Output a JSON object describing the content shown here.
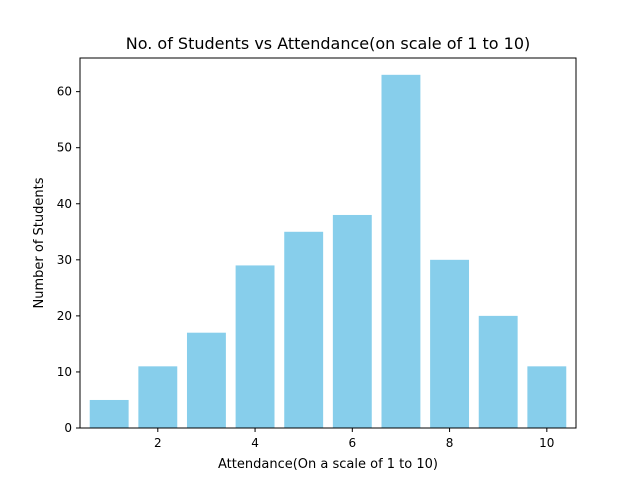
{
  "chart_data": {
    "type": "bar",
    "title": "No. of Students vs Attendance(on scale of 1 to 10)",
    "xlabel": "Attendance(On a scale of 1 to 10)",
    "ylabel": "Number of Students",
    "x": [
      1,
      2,
      3,
      4,
      5,
      6,
      7,
      8,
      9,
      10
    ],
    "values": [
      5,
      11,
      17,
      29,
      35,
      38,
      63,
      30,
      20,
      11
    ],
    "xlim": [
      0.4,
      10.6
    ],
    "ylim": [
      0,
      66
    ],
    "xticks": [
      2,
      4,
      6,
      8,
      10
    ],
    "yticks": [
      0,
      10,
      20,
      30,
      40,
      50,
      60
    ],
    "bar_width": 0.8,
    "grid": false,
    "legend": "none",
    "colors": {
      "bar": "#87ceeb",
      "axis": "#000000"
    }
  }
}
